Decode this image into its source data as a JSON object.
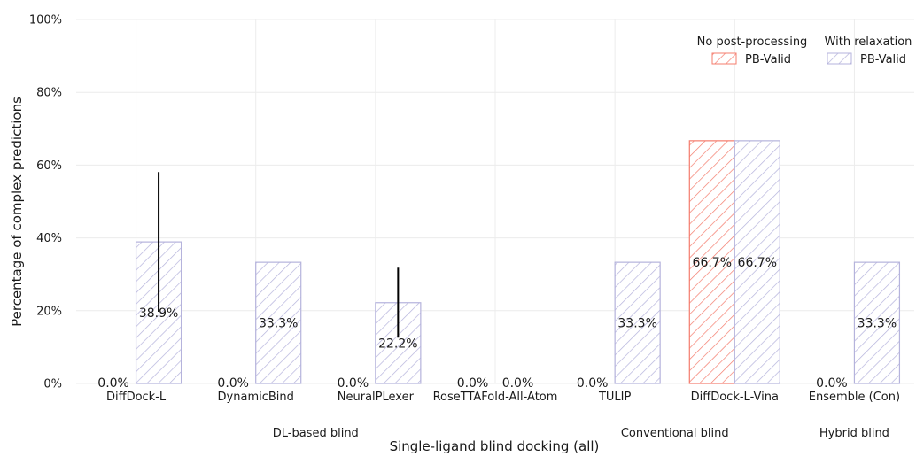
{
  "chart_data": {
    "type": "bar",
    "xlabel": "Single-ligand blind docking (all)",
    "ylabel": "Percentage of complex predictions",
    "ylim": [
      0,
      100
    ],
    "y_ticks": [
      "0%",
      "20%",
      "40%",
      "60%",
      "80%",
      "100%"
    ],
    "grid": true,
    "legend_position": "top-right",
    "categories": [
      "DiffDock-L",
      "DynamicBind",
      "NeuralPLexer",
      "RoseTTAFold-All-Atom",
      "TULIP",
      "DiffDock-L-Vina",
      "Ensemble (Con)"
    ],
    "groups": [
      {
        "label": "DL-based blind",
        "categories": [
          "DiffDock-L",
          "DynamicBind",
          "NeuralPLexer",
          "RoseTTAFold-All-Atom"
        ]
      },
      {
        "label": "Conventional blind",
        "categories": [
          "TULIP",
          "DiffDock-L-Vina"
        ]
      },
      {
        "label": "Hybrid blind",
        "categories": [
          "Ensemble (Con)"
        ]
      }
    ],
    "series": [
      {
        "name": "PB-Valid",
        "legend_title": "No post-processing",
        "color": "#f47c6d",
        "values": [
          0.0,
          0.0,
          0.0,
          0.0,
          0.0,
          66.7,
          0.0
        ],
        "labels": [
          "0.0%",
          "0.0%",
          "0.0%",
          "0.0%",
          "0.0%",
          "66.7%",
          "0.0%"
        ],
        "error_low": [
          null,
          null,
          null,
          null,
          null,
          null,
          null
        ],
        "error_high": [
          null,
          null,
          null,
          null,
          null,
          null,
          null
        ]
      },
      {
        "name": "PB-Valid",
        "legend_title": "With relaxation",
        "color": "#b5b3dc",
        "values": [
          38.9,
          33.3,
          22.2,
          0.0,
          33.3,
          66.7,
          33.3
        ],
        "labels": [
          "38.9%",
          "33.3%",
          "22.2%",
          "0.0%",
          "33.3%",
          "66.7%",
          "33.3%"
        ],
        "error_low": [
          19.7,
          null,
          12.6,
          null,
          null,
          null,
          null
        ],
        "error_high": [
          58.1,
          null,
          31.8,
          null,
          null,
          null,
          null
        ]
      }
    ]
  }
}
